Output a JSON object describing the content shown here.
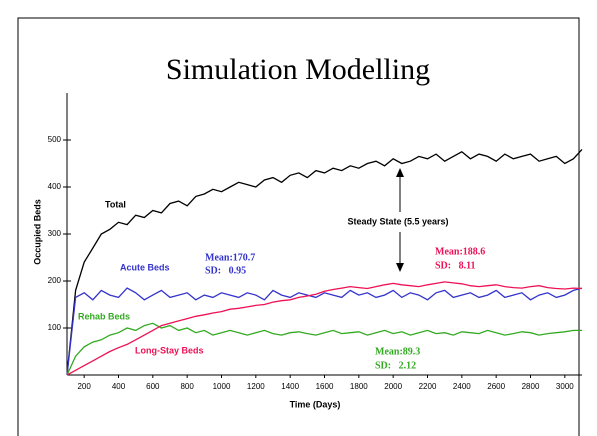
{
  "chart_data": {
    "type": "line",
    "title": "Simulation Modelling",
    "x_label": "Time (Days)",
    "y_label": "Occupied Beds",
    "xlim": [
      100,
      3100
    ],
    "ylim": [
      0,
      600
    ],
    "xticks": [
      200,
      400,
      600,
      800,
      1000,
      1200,
      1400,
      1600,
      1800,
      2000,
      2200,
      2400,
      2600,
      2800,
      3000
    ],
    "yticks": [
      100,
      200,
      300,
      400,
      500
    ],
    "x": [
      100,
      150,
      200,
      250,
      300,
      350,
      400,
      450,
      500,
      550,
      600,
      650,
      700,
      750,
      800,
      850,
      900,
      950,
      1000,
      1050,
      1100,
      1150,
      1200,
      1250,
      1300,
      1350,
      1400,
      1450,
      1500,
      1550,
      1600,
      1650,
      1700,
      1750,
      1800,
      1850,
      1900,
      1950,
      2000,
      2050,
      2100,
      2150,
      2200,
      2250,
      2300,
      2350,
      2400,
      2450,
      2500,
      2550,
      2600,
      2650,
      2700,
      2750,
      2800,
      2850,
      2900,
      2950,
      3000,
      3050,
      3100
    ],
    "series": [
      {
        "name": "Total",
        "color": "#000000",
        "values": [
          0,
          180,
          240,
          270,
          300,
          310,
          325,
          320,
          340,
          335,
          350,
          345,
          365,
          370,
          360,
          380,
          385,
          395,
          390,
          400,
          410,
          405,
          400,
          415,
          420,
          410,
          425,
          430,
          420,
          435,
          430,
          440,
          435,
          445,
          440,
          450,
          455,
          445,
          460,
          450,
          455,
          465,
          460,
          470,
          455,
          465,
          475,
          460,
          470,
          465,
          455,
          470,
          460,
          465,
          470,
          455,
          460,
          465,
          450,
          460,
          480
        ]
      },
      {
        "name": "Acute Beds",
        "color": "#3333cc",
        "values": [
          0,
          165,
          175,
          160,
          180,
          170,
          165,
          185,
          175,
          160,
          170,
          180,
          165,
          170,
          175,
          160,
          170,
          165,
          175,
          170,
          165,
          175,
          170,
          160,
          180,
          170,
          165,
          175,
          170,
          165,
          175,
          170,
          165,
          180,
          170,
          175,
          165,
          170,
          180,
          165,
          175,
          170,
          160,
          175,
          180,
          165,
          170,
          175,
          165,
          170,
          180,
          165,
          170,
          175,
          160,
          170,
          175,
          165,
          170,
          180,
          185
        ]
      },
      {
        "name": "Rehab Beds",
        "color": "#33aa22",
        "values": [
          0,
          40,
          60,
          70,
          75,
          85,
          90,
          100,
          95,
          105,
          110,
          100,
          105,
          95,
          100,
          90,
          95,
          85,
          90,
          95,
          90,
          85,
          90,
          95,
          88,
          85,
          90,
          92,
          88,
          85,
          90,
          95,
          88,
          90,
          92,
          85,
          90,
          95,
          88,
          92,
          85,
          90,
          95,
          88,
          90,
          85,
          92,
          90,
          88,
          95,
          90,
          85,
          88,
          92,
          90,
          85,
          88,
          90,
          92,
          95,
          95
        ]
      },
      {
        "name": "Long-Stay Beds",
        "color": "#ee1155",
        "values": [
          0,
          10,
          20,
          30,
          40,
          50,
          58,
          65,
          75,
          85,
          95,
          105,
          110,
          115,
          120,
          125,
          128,
          132,
          135,
          140,
          142,
          145,
          148,
          150,
          155,
          158,
          160,
          165,
          168,
          172,
          178,
          182,
          185,
          188,
          186,
          184,
          188,
          192,
          195,
          192,
          190,
          188,
          192,
          195,
          198,
          196,
          194,
          190,
          188,
          190,
          192,
          188,
          186,
          185,
          188,
          190,
          186,
          184,
          183,
          185,
          184
        ]
      }
    ],
    "annotations": [
      "Steady State (5.5 years)",
      "Mean:170.7",
      "SD:   0.95",
      "Mean:188.6",
      "SD:   8.11",
      "Mean:89.3",
      "SD:   2.12"
    ]
  }
}
